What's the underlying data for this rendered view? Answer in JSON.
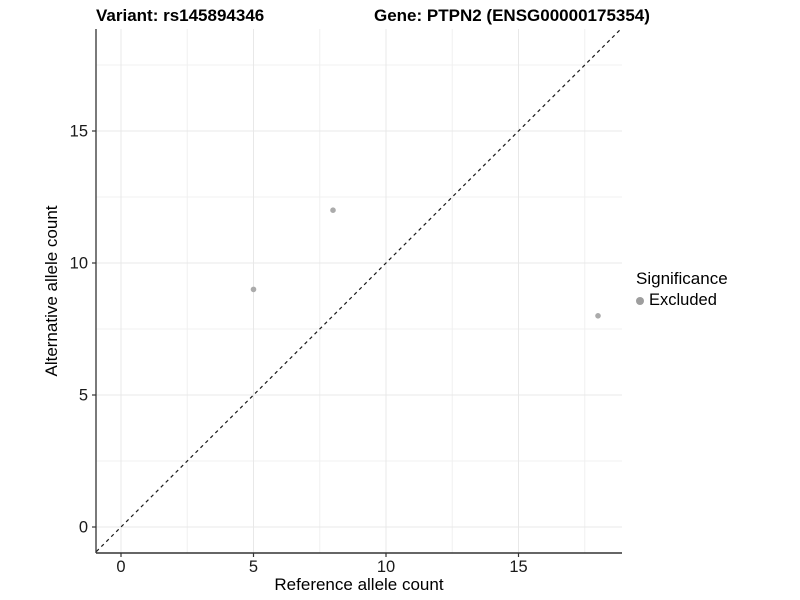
{
  "titles": {
    "variant": "Variant: rs145894346",
    "gene": "Gene: PTPN2 (ENSG00000175354)"
  },
  "axes": {
    "x": {
      "label": "Reference allele count"
    },
    "y": {
      "label": "Alternative allele count"
    }
  },
  "legend": {
    "title": "Significance",
    "items": [
      {
        "label": "Excluded",
        "color": "#9e9e9e"
      }
    ]
  },
  "chart_data": {
    "type": "scatter",
    "title": "Variant: rs145894346 | Gene: PTPN2 (ENSG00000175354)",
    "xlabel": "Reference allele count",
    "ylabel": "Alternative allele count",
    "xlim": [
      -0.93,
      18.87
    ],
    "ylim": [
      -0.93,
      18.87
    ],
    "x_major_ticks": [
      0,
      5,
      10,
      15
    ],
    "x_minor_gridlines": [
      2.5,
      7.5,
      12.5,
      17.5
    ],
    "y_major_ticks": [
      0,
      5,
      10,
      15
    ],
    "y_minor_gridlines": [
      2.5,
      7.5,
      12.5,
      17.5
    ],
    "grid": "on",
    "legend_position": "right",
    "series": [
      {
        "name": "Excluded",
        "color": "#ababab",
        "points": [
          {
            "x": 5,
            "y": 9
          },
          {
            "x": 8,
            "y": 12
          },
          {
            "x": 18,
            "y": 8
          }
        ]
      }
    ],
    "reference_line": {
      "type": "identity",
      "slope": 1,
      "intercept": 0,
      "style": "dashed",
      "color": "#1a1a1a"
    }
  },
  "colors": {
    "axis_line": "#333333",
    "grid_major": "#e8e8e8",
    "grid_minor": "#f0f0f0",
    "tick_label": "#1a1a1a",
    "point": "#ababab",
    "legend_dot": "#9e9e9e"
  }
}
